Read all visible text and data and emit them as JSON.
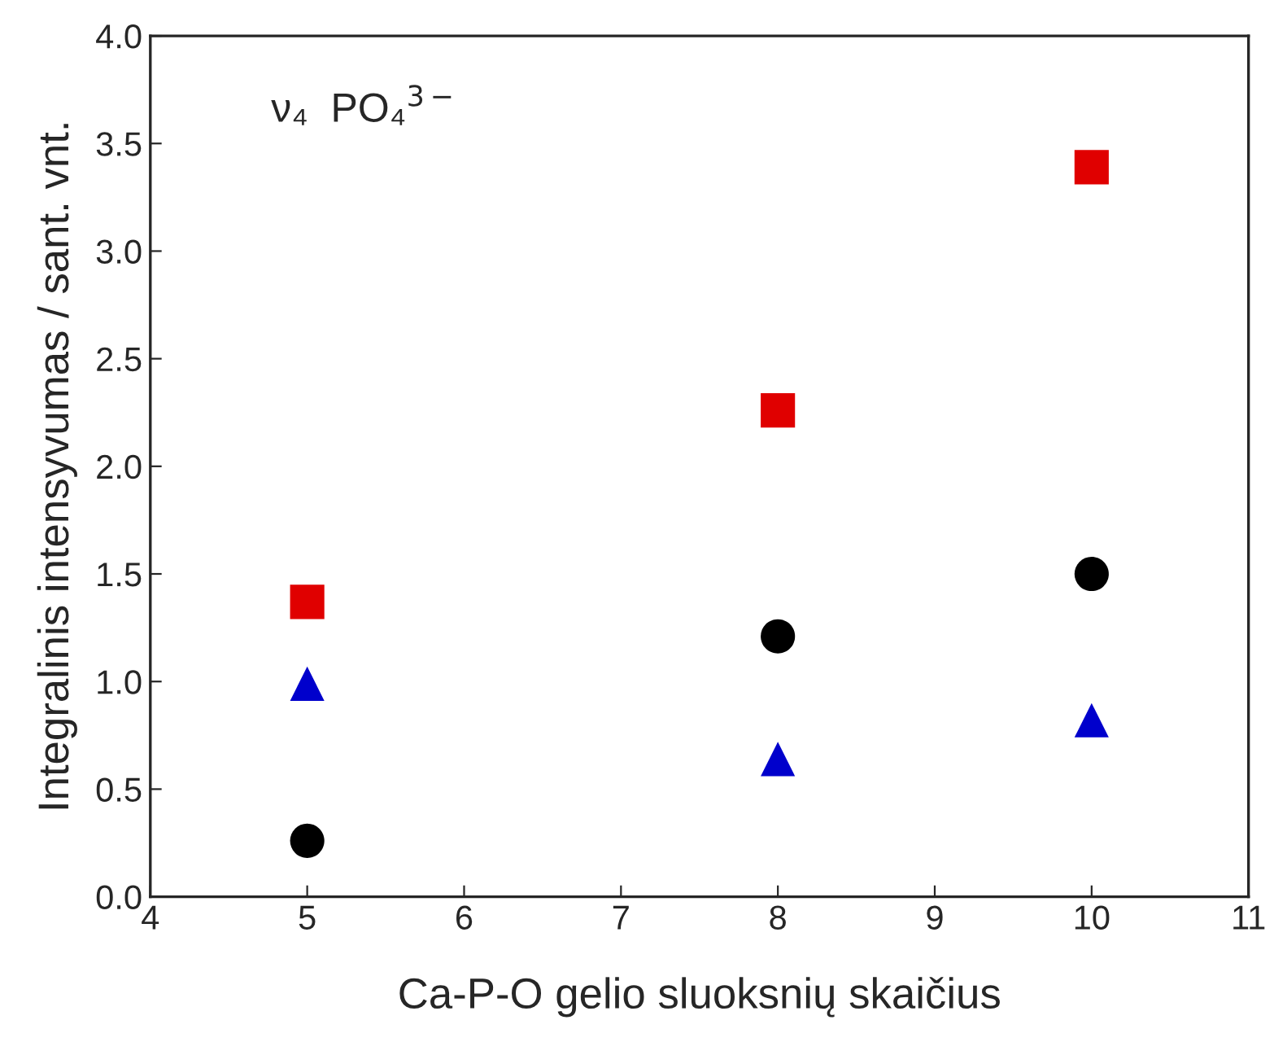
{
  "chart_data": {
    "type": "scatter",
    "xlabel": "Ca-P-O gelio sluoksnių skaičius",
    "ylabel": "Integralinis intensyvumas / sant. vnt.",
    "annotations": [
      "ν₄  PO₄$^{3−}$"
    ],
    "x": [
      5,
      8,
      10
    ],
    "series": [
      {
        "color": "#e00000",
        "marker": "square",
        "values": [
          1.37,
          2.26,
          3.39
        ]
      },
      {
        "color": "#000000",
        "marker": "circle",
        "values": [
          0.26,
          1.21,
          1.5
        ]
      },
      {
        "color": "#0000cc",
        "marker": "triangle",
        "values": [
          0.99,
          0.64,
          0.82
        ]
      }
    ],
    "xlim": [
      4,
      11
    ],
    "xticks": [
      4,
      5,
      6,
      7,
      8,
      9,
      10,
      11
    ],
    "ylim": [
      0,
      4
    ],
    "yticks": [
      {
        "value": 0,
        "label": "0.0"
      },
      {
        "value": 0.5,
        "label": "0.5"
      },
      {
        "value": 1,
        "label": "1.0"
      },
      {
        "value": 1.5,
        "label": "1.5"
      },
      {
        "value": 2,
        "label": "2.0"
      },
      {
        "value": 2.5,
        "label": "2.5"
      },
      {
        "value": 3,
        "label": "3.0"
      },
      {
        "value": 3.5,
        "label": "3.5"
      },
      {
        "value": 4,
        "label": "4.0"
      }
    ],
    "grid": false,
    "legend": false
  }
}
